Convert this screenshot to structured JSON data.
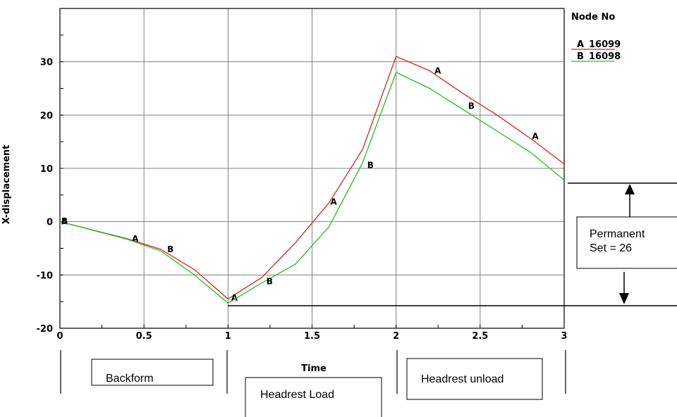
{
  "chart_data": {
    "type": "line",
    "xlabel": "Time",
    "ylabel": "X-displacement",
    "xlim": [
      0,
      3
    ],
    "ylim": [
      -20,
      40
    ],
    "x_ticks": [
      "0",
      "0.5",
      "1",
      "1.5",
      "2",
      "2.5",
      "3"
    ],
    "y_ticks": [
      "-20",
      "-10",
      "0",
      "10",
      "20",
      "30"
    ],
    "grid": true,
    "legend": {
      "title": "Node No",
      "position": "top-right",
      "entries": [
        {
          "marker": "A",
          "label": "16099",
          "color": "#e02020"
        },
        {
          "marker": "B",
          "label": "16098",
          "color": "#20c020"
        }
      ]
    },
    "series": [
      {
        "name": "16099",
        "marker": "A",
        "color": "#e02020",
        "x": [
          0,
          0.4,
          0.6,
          0.8,
          1.0,
          1.2,
          1.4,
          1.6,
          1.8,
          2.0,
          2.2,
          2.4,
          2.6,
          2.8,
          3.0
        ],
        "y": [
          0,
          -3.2,
          -5.2,
          -9.0,
          -14.5,
          -10.5,
          -4.0,
          3.5,
          13.5,
          31.0,
          28.3,
          24.0,
          20.0,
          15.6,
          10.8
        ],
        "marker_points": [
          [
            0.0,
            0.0
          ],
          [
            0.42,
            -3.2
          ],
          [
            1.01,
            -14.3
          ],
          [
            1.6,
            3.7
          ],
          [
            2.22,
            28.3
          ],
          [
            2.8,
            16.0
          ]
        ]
      },
      {
        "name": "16098",
        "marker": "B",
        "color": "#20c020",
        "x": [
          0,
          0.4,
          0.6,
          0.8,
          1.0,
          1.2,
          1.4,
          1.6,
          1.8,
          2.0,
          2.2,
          2.4,
          2.6,
          2.8,
          3.0
        ],
        "y": [
          0,
          -3.3,
          -5.5,
          -10.0,
          -15.3,
          -11.5,
          -8.0,
          -1.0,
          11.0,
          28.0,
          25.0,
          21.0,
          17.0,
          13.0,
          7.8
        ],
        "marker_points": [
          [
            0.0,
            0.1
          ],
          [
            0.63,
            -5.2
          ],
          [
            1.22,
            -11.2
          ],
          [
            1.82,
            10.6
          ],
          [
            2.42,
            21.7
          ]
        ]
      }
    ],
    "annotations": [
      {
        "text": "Permanent\nSet = 26"
      },
      {
        "text": "Backform"
      },
      {
        "text": "Headrest Load"
      },
      {
        "text": "Headrest unload"
      }
    ]
  }
}
